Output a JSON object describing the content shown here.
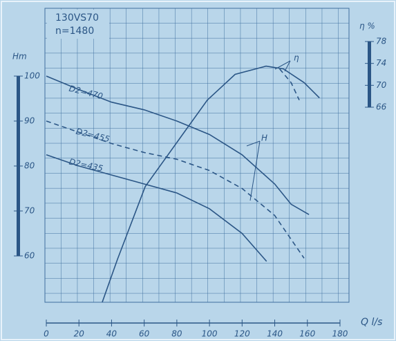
{
  "chart_data": {
    "type": "line",
    "title": "130VS70",
    "subtitle": "n=1480",
    "xlabel": "Q l/s",
    "ylabel": "Hm",
    "y2label": "η %",
    "xlim": [
      0,
      185
    ],
    "xticks": [
      0,
      20,
      40,
      60,
      80,
      100,
      120,
      140,
      160,
      180
    ],
    "ylim": [
      50,
      115
    ],
    "yticks": [
      60,
      70,
      80,
      90,
      100
    ],
    "y2lim": [
      30,
      84
    ],
    "y2ticks": [
      66,
      70,
      74,
      78
    ],
    "grid": true,
    "color": "#2b5686",
    "annotations": [
      "H",
      "η"
    ],
    "series": [
      {
        "name": "D2=470",
        "x": [
          0,
          20,
          40,
          60,
          80,
          100,
          120,
          140,
          150,
          161
        ],
        "values": [
          100,
          97,
          94.2,
          92.5,
          90,
          87,
          82.5,
          76,
          71.5,
          69.2
        ]
      },
      {
        "name": "D2=455",
        "dashed": true,
        "x": [
          0,
          20,
          40,
          60,
          80,
          100,
          120,
          140,
          158
        ],
        "values": [
          90,
          87.5,
          85,
          83,
          81.5,
          79,
          75,
          69,
          59.5
        ]
      },
      {
        "name": "D2=435",
        "x": [
          0,
          20,
          40,
          60,
          80,
          100,
          120,
          135
        ],
        "values": [
          82.5,
          80,
          78,
          76,
          74,
          70.5,
          65,
          58.8
        ]
      },
      {
        "axis": "y2",
        "x": [
          34.3,
          43.6,
          60.6,
          81.8,
          98.7,
          115.7,
          134.7,
          145.3,
          158,
          167.4
        ],
        "values": [
          30.4,
          38.2,
          51.5,
          60.3,
          67.3,
          72,
          73.5,
          73,
          70.5,
          67.7
        ]
      },
      {
        "axis": "y2",
        "dashed": true,
        "x": [
          143,
          150,
          155
        ],
        "values": [
          73,
          70.5,
          67.3
        ]
      }
    ]
  }
}
